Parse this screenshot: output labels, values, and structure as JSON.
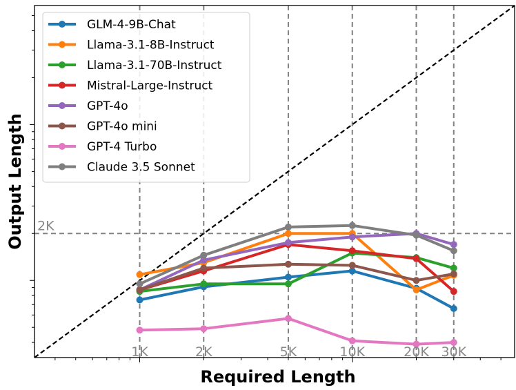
{
  "chart_data": {
    "type": "line",
    "xlabel": "Required Length",
    "ylabel": "Output Length",
    "x_scale": "log",
    "y_scale": "log",
    "x": [
      1000,
      2000,
      5000,
      10000,
      20000,
      30000
    ],
    "x_tick_labels": [
      "1K",
      "2K",
      "5K",
      "10K",
      "20K",
      "30K"
    ],
    "xlim": [
      320,
      58000
    ],
    "ylim": [
      320,
      58000
    ],
    "reference_line": {
      "style": "dashed",
      "color": "#000000",
      "meaning": "y = x"
    },
    "horizontal_reference": {
      "value": 2000,
      "label": "2K"
    },
    "grid": "dashed vertical lines at x ticks",
    "legend_position": "upper-left",
    "series": [
      {
        "name": "GLM-4-9B-Chat",
        "color": "#1f77b4",
        "values": [
          750,
          910,
          1050,
          1150,
          890,
          660
        ]
      },
      {
        "name": "Llama-3.1-8B-Instruct",
        "color": "#ff7f0e",
        "values": [
          1090,
          1300,
          2000,
          2000,
          870,
          1080
        ]
      },
      {
        "name": "Llama-3.1-70B-Instruct",
        "color": "#2ca02c",
        "values": [
          850,
          950,
          950,
          1500,
          1400,
          1200
        ]
      },
      {
        "name": "Mistral-Large-Instruct",
        "color": "#d62728",
        "values": [
          870,
          1150,
          1700,
          1550,
          1380,
          850
        ]
      },
      {
        "name": "GPT-4o",
        "color": "#9467bd",
        "values": [
          870,
          1350,
          1750,
          1900,
          2000,
          1700
        ]
      },
      {
        "name": "GPT-4o mini",
        "color": "#8c564b",
        "values": [
          870,
          1200,
          1270,
          1250,
          1000,
          1100
        ]
      },
      {
        "name": "GPT-4 Turbo",
        "color": "#e377c2",
        "values": [
          480,
          490,
          570,
          410,
          390,
          400
        ]
      },
      {
        "name": "Claude 3.5 Sonnet",
        "color": "#7f7f7f",
        "values": [
          950,
          1450,
          2200,
          2250,
          1950,
          1550
        ]
      }
    ]
  }
}
